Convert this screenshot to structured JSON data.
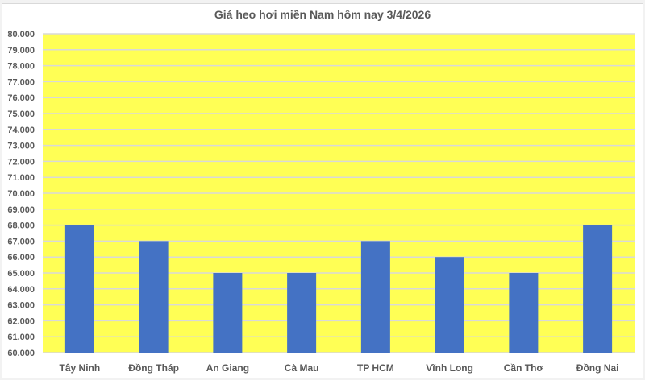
{
  "chart_data": {
    "type": "bar",
    "title": "Giá heo hơi miền Nam hôm nay 3/4/2026",
    "categories": [
      "Tây Ninh",
      "Đồng Tháp",
      "An Giang",
      "Cà Mau",
      "TP HCM",
      "Vĩnh Long",
      "Cần Thơ",
      "Đồng Nai"
    ],
    "values": [
      68000,
      67000,
      65000,
      65000,
      67000,
      66000,
      65000,
      68000
    ],
    "ylim": [
      60000,
      80000
    ],
    "ytick_step": 1000,
    "ytick_labels": [
      "60.000",
      "61.000",
      "62.000",
      "63.000",
      "64.000",
      "65.000",
      "66.000",
      "67.000",
      "68.000",
      "69.000",
      "70.000",
      "71.000",
      "72.000",
      "73.000",
      "74.000",
      "75.000",
      "76.000",
      "77.000",
      "78.000",
      "79.000",
      "80.000"
    ],
    "xlabel": "",
    "ylabel": "",
    "grid": true,
    "legend": "none",
    "colors": {
      "bar": "#4472c4",
      "plot_background": "#ffff55",
      "grid": "#d9d9d9",
      "text": "#595959"
    }
  }
}
